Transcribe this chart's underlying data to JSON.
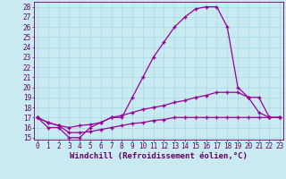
{
  "xlabel": "Windchill (Refroidissement éolien,°C)",
  "background_color": "#c8eaf0",
  "grid_color": "#a8d8e0",
  "line_color": "#990099",
  "x_ticks": [
    0,
    1,
    2,
    3,
    4,
    5,
    6,
    7,
    8,
    9,
    10,
    11,
    12,
    13,
    14,
    15,
    16,
    17,
    18,
    19,
    20,
    21,
    22,
    23
  ],
  "y_ticks": [
    15,
    16,
    17,
    18,
    19,
    20,
    21,
    22,
    23,
    24,
    25,
    26,
    27,
    28
  ],
  "xlim": [
    -0.3,
    23.3
  ],
  "ylim": [
    14.8,
    28.5
  ],
  "line1_y": [
    17.0,
    16.0,
    16.0,
    15.0,
    15.0,
    16.0,
    16.5,
    17.0,
    17.0,
    19.0,
    21.0,
    23.0,
    24.5,
    26.0,
    27.0,
    27.8,
    28.0,
    28.0,
    26.0,
    20.0,
    19.0,
    19.0,
    17.0,
    17.0
  ],
  "line2_y": [
    17.0,
    16.5,
    16.2,
    16.0,
    16.2,
    16.3,
    16.5,
    17.0,
    17.2,
    17.5,
    17.8,
    18.0,
    18.2,
    18.5,
    18.7,
    19.0,
    19.2,
    19.5,
    19.5,
    19.5,
    19.0,
    17.5,
    17.0,
    17.0
  ],
  "line3_y": [
    17.0,
    16.5,
    16.2,
    15.5,
    15.5,
    15.6,
    15.8,
    16.0,
    16.2,
    16.4,
    16.5,
    16.7,
    16.8,
    17.0,
    17.0,
    17.0,
    17.0,
    17.0,
    17.0,
    17.0,
    17.0,
    17.0,
    17.0,
    17.0
  ],
  "marker": "+",
  "marker_size": 3,
  "linewidth": 0.9,
  "font_color": "#660066",
  "xlabel_fontsize": 6.5,
  "tick_fontsize": 5.5
}
